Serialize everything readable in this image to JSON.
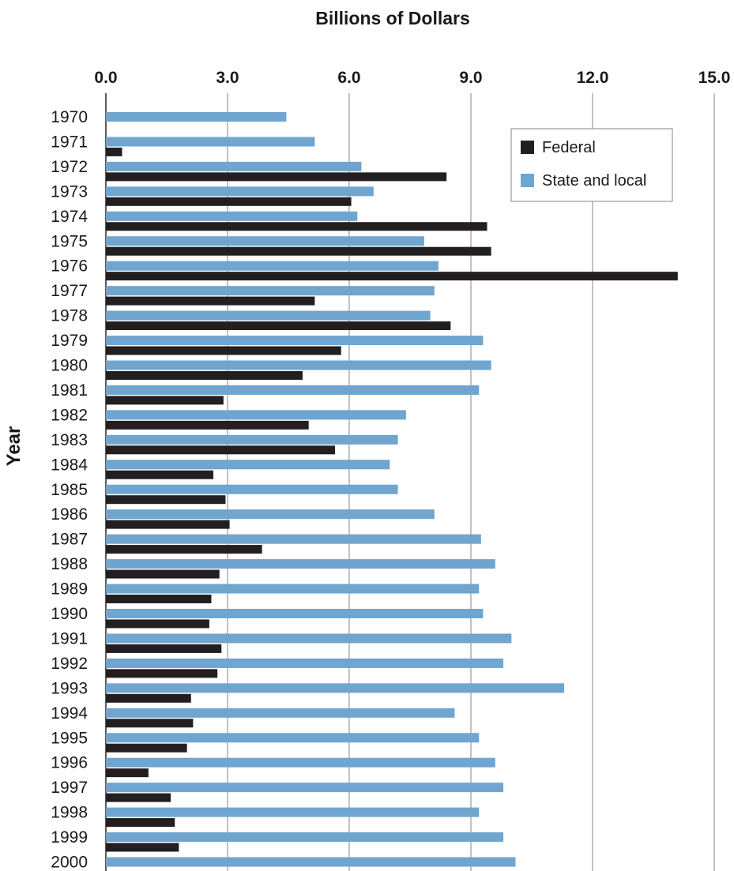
{
  "chart_data": {
    "type": "bar",
    "orientation": "horizontal",
    "title": "Billions of Dollars",
    "xlabel": "Billions of Dollars",
    "ylabel": "Year",
    "xlim": [
      0,
      15
    ],
    "xticks": [
      "0.0",
      "3.0",
      "6.0",
      "9.0",
      "12.0",
      "15.0"
    ],
    "grid": "vertical",
    "legend_position": "top-right",
    "categories": [
      "1970",
      "1971",
      "1972",
      "1973",
      "1974",
      "1975",
      "1976",
      "1977",
      "1978",
      "1979",
      "1980",
      "1981",
      "1982",
      "1983",
      "1984",
      "1985",
      "1986",
      "1987",
      "1988",
      "1989",
      "1990",
      "1991",
      "1992",
      "1993",
      "1994",
      "1995",
      "1996",
      "1997",
      "1998",
      "1999",
      "2000"
    ],
    "series": [
      {
        "name": "Federal",
        "color": "#231f20",
        "values": [
          0,
          0,
          0.4,
          8.4,
          6.05,
          9.4,
          9.5,
          14.1,
          5.15,
          8.5,
          5.8,
          4.85,
          2.9,
          5.0,
          5.65,
          2.65,
          2.95,
          3.05,
          3.85,
          2.8,
          2.6,
          2.55,
          2.85,
          2.75,
          2.1,
          2.15,
          2.0,
          1.05,
          1.6,
          1.7,
          1.8
        ]
      },
      {
        "name": "State and local",
        "color": "#6fa5cf",
        "values": [
          4.45,
          5.15,
          6.3,
          6.6,
          6.2,
          7.85,
          8.2,
          8.1,
          8.0,
          9.3,
          9.5,
          9.2,
          7.4,
          7.2,
          7.0,
          7.2,
          8.1,
          9.25,
          9.6,
          9.2,
          9.3,
          10.0,
          9.8,
          11.3,
          8.6,
          9.2,
          9.6,
          9.8,
          9.2,
          9.8,
          10.1
        ]
      }
    ]
  }
}
